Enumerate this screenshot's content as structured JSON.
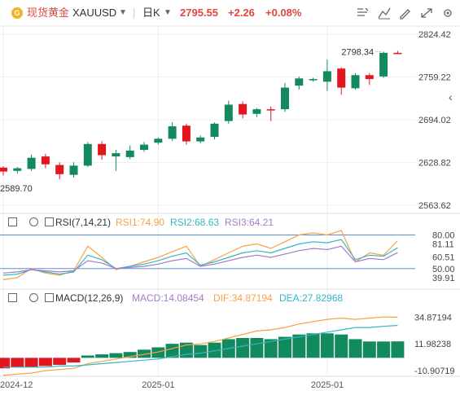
{
  "header": {
    "name": "现货黄金",
    "symbol": "XAUUSD",
    "period": "日K",
    "last_price": "2795.55",
    "change": "+2.26",
    "change_pct": "+0.08%",
    "coin_glyph": "G",
    "accent_color": "#e0473f",
    "up_color": "#138a5e",
    "down_color": "#e0171f"
  },
  "toolbar": {
    "icons": [
      "alert-icon",
      "indicator-icon",
      "draw-icon",
      "fullscreen-edit-icon",
      "expand-icon",
      "settings-icon"
    ]
  },
  "side_collapse_icon": "chevron-left-icon",
  "rsi_panel": {
    "title": "RSI(7,14,21)",
    "rsi1": "RSI1:74.90",
    "rsi2": "RSI2:68.63",
    "rsi3": "RSI3:64.21"
  },
  "macd_panel": {
    "title": "MACD(12,26,9)",
    "macd": "MACD:14.08454",
    "dif": "DIF:34.87194",
    "dea": "DEA:27.82968"
  },
  "chart_data": [
    {
      "type": "candlestick",
      "y_axis_labels": [
        "2824.42",
        "2759.22",
        "2694.02",
        "2628.82",
        "2563.62"
      ],
      "ylim": [
        2563.62,
        2824.42
      ],
      "x_axis_labels": [
        {
          "label": "2024-12",
          "index": 0
        },
        {
          "label": "2025-01",
          "index": 11
        },
        {
          "label": "2025-01",
          "index": 23
        }
      ],
      "high_annotation": "2798.34",
      "low_annotation": "2589.70",
      "ohlc": [
        [
          2621,
          2623,
          2609,
          2615
        ],
        [
          2616,
          2622,
          2612,
          2620
        ],
        [
          2619,
          2641,
          2616,
          2636
        ],
        [
          2638,
          2642,
          2620,
          2626
        ],
        [
          2625,
          2629,
          2603,
          2611
        ],
        [
          2610,
          2629,
          2606,
          2624
        ],
        [
          2624,
          2660,
          2622,
          2657
        ],
        [
          2657,
          2661,
          2633,
          2640
        ],
        [
          2638,
          2648,
          2616,
          2643
        ],
        [
          2637,
          2655,
          2634,
          2647
        ],
        [
          2648,
          2660,
          2645,
          2656
        ],
        [
          2659,
          2667,
          2656,
          2665
        ],
        [
          2665,
          2690,
          2662,
          2684
        ],
        [
          2685,
          2688,
          2656,
          2661
        ],
        [
          2661,
          2670,
          2658,
          2667
        ],
        [
          2668,
          2690,
          2664,
          2688
        ],
        [
          2692,
          2723,
          2688,
          2717
        ],
        [
          2718,
          2722,
          2696,
          2702
        ],
        [
          2703,
          2712,
          2698,
          2710
        ],
        [
          2710,
          2714,
          2692,
          2709
        ],
        [
          2710,
          2750,
          2706,
          2743
        ],
        [
          2746,
          2760,
          2740,
          2757
        ],
        [
          2756,
          2758,
          2752,
          2756
        ],
        [
          2752,
          2786,
          2738,
          2768
        ],
        [
          2772,
          2774,
          2732,
          2743
        ],
        [
          2742,
          2765,
          2740,
          2762
        ],
        [
          2762,
          2765,
          2747,
          2756
        ],
        [
          2760,
          2798,
          2758,
          2796
        ],
        [
          2796,
          2799,
          2794,
          2795.55
        ]
      ]
    },
    {
      "type": "line",
      "name": "RSI",
      "y_axis_labels": [
        "80.00",
        "81.11",
        "60.51",
        "50.00",
        "39.91"
      ],
      "reference_lines": [
        80,
        50
      ],
      "series": [
        {
          "name": "RSI1",
          "color": "#f4a346",
          "values": [
            40,
            42,
            50,
            46,
            44,
            48,
            70,
            60,
            49,
            52,
            56,
            60,
            65,
            70,
            52,
            58,
            64,
            70,
            72,
            68,
            74,
            80,
            82,
            80,
            84,
            56,
            64,
            62,
            74.9
          ]
        },
        {
          "name": "RSI2",
          "color": "#35b6c4",
          "values": [
            44,
            45,
            49,
            47,
            45,
            47,
            62,
            58,
            50,
            52,
            54,
            57,
            61,
            64,
            53,
            56,
            60,
            64,
            66,
            64,
            68,
            72,
            74,
            73,
            76,
            58,
            62,
            61,
            68.63
          ]
        },
        {
          "name": "RSI3",
          "color": "#a57bc7",
          "values": [
            46,
            47,
            49,
            48,
            47,
            48,
            57,
            55,
            50,
            51,
            52,
            54,
            57,
            59,
            52,
            54,
            57,
            60,
            62,
            60,
            63,
            66,
            68,
            67,
            70,
            56,
            59,
            58,
            64.21
          ]
        }
      ]
    },
    {
      "type": "bar",
      "name": "MACD",
      "y_axis_labels": [
        "34.87194",
        "11.98238",
        "-10.90719"
      ],
      "ylim": [
        -13,
        47
      ],
      "histogram": [
        -9,
        -8,
        -8,
        -7,
        -6,
        -4,
        2,
        3,
        4,
        5,
        7,
        9,
        12,
        13,
        11,
        13,
        16,
        17,
        17,
        16,
        18,
        20,
        21,
        21,
        20,
        16,
        14,
        14,
        14.08454
      ],
      "dif": [
        -15,
        -14,
        -13,
        -11,
        -10,
        -9,
        -5,
        -3,
        -1,
        1,
        3,
        5,
        8,
        11,
        12,
        14,
        17,
        20,
        23,
        24,
        26,
        29,
        31,
        33,
        34,
        33,
        34,
        35,
        34.87194
      ],
      "dea": [
        -8,
        -8,
        -8,
        -8,
        -7,
        -7,
        -6,
        -5,
        -4,
        -3,
        -2,
        -1,
        1,
        3,
        4,
        6,
        8,
        10,
        12,
        14,
        16,
        18,
        20,
        22,
        24,
        26,
        26,
        27,
        27.82968
      ],
      "hist_up_color": "#138a5e",
      "hist_down_color": "#e0171f"
    }
  ]
}
